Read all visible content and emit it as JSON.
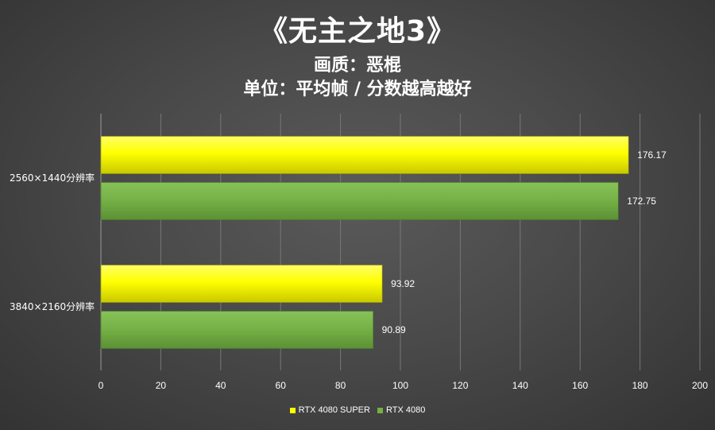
{
  "chart_data": {
    "type": "bar",
    "orientation": "horizontal",
    "title": "《无主之地3》",
    "subtitle_lines": [
      "画质：恶棍",
      "单位：平均帧 / 分数越高越好"
    ],
    "categories": [
      "2560×1440分辨率",
      "3840×2160分辨率"
    ],
    "series": [
      {
        "name": "RTX 4080 SUPER",
        "color": "#ffff00",
        "values": [
          176.17,
          93.92
        ]
      },
      {
        "name": "RTX 4080",
        "color": "#74b045",
        "values": [
          172.75,
          90.89
        ]
      }
    ],
    "xlim": [
      0,
      200
    ],
    "x_ticks": [
      0,
      20,
      40,
      60,
      80,
      100,
      120,
      140,
      160,
      180,
      200
    ],
    "grid": "vertical",
    "legend_position": "bottom",
    "data_labels": true
  }
}
